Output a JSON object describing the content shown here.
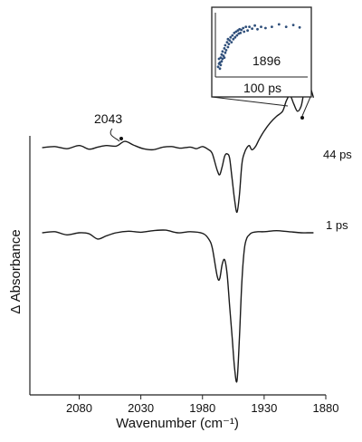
{
  "chart_data": [
    {
      "type": "line",
      "xlabel": "Wavenumber (cm⁻¹)",
      "ylabel": "Δ Absorbance",
      "xlim": [
        2120,
        1880
      ],
      "x_reversed": true,
      "x_ticks": [
        2080,
        2030,
        1980,
        1930,
        1880
      ],
      "grid": false,
      "series": [
        {
          "name": "44 ps",
          "x": [
            2110,
            2100,
            2090,
            2080,
            2072,
            2065,
            2058,
            2050,
            2043,
            2036,
            2028,
            2020,
            2012,
            2005,
            1998,
            1990,
            1985,
            1980,
            1975,
            1972,
            1968,
            1966,
            1964,
            1962,
            1960,
            1958,
            1956,
            1954,
            1952,
            1950,
            1948,
            1946,
            1944,
            1942,
            1940,
            1937,
            1934,
            1930,
            1925,
            1920,
            1915,
            1912,
            1909,
            1906,
            1903,
            1900,
            1898,
            1896,
            1894,
            1892,
            1890
          ],
          "y": [
            0.0,
            0.01,
            -0.01,
            0.02,
            -0.015,
            0.005,
            0.02,
            0.015,
            0.06,
            0.025,
            -0.01,
            -0.02,
            0.005,
            0.01,
            -0.005,
            0.005,
            -0.01,
            0.01,
            -0.02,
            -0.06,
            -0.22,
            -0.26,
            -0.18,
            -0.08,
            -0.06,
            -0.1,
            -0.3,
            -0.5,
            -0.62,
            -0.45,
            -0.15,
            -0.05,
            0.0,
            0.02,
            -0.02,
            0.01,
            0.08,
            0.16,
            0.24,
            0.3,
            0.35,
            0.45,
            0.5,
            0.42,
            0.35,
            0.4,
            0.52,
            0.64,
            0.62,
            0.56,
            0.48
          ]
        },
        {
          "name": "1 ps",
          "x": [
            2110,
            2100,
            2090,
            2080,
            2072,
            2065,
            2058,
            2050,
            2040,
            2030,
            2020,
            2010,
            2000,
            1990,
            1980,
            1975,
            1972,
            1968,
            1966,
            1964,
            1962,
            1960,
            1958,
            1956,
            1954,
            1952,
            1950,
            1948,
            1946,
            1944,
            1942,
            1940,
            1935,
            1930,
            1920,
            1910,
            1900,
            1895,
            1890
          ],
          "y": [
            0.0,
            0.01,
            -0.02,
            0.0,
            -0.01,
            -0.06,
            -0.03,
            0.0,
            0.015,
            0.005,
            0.02,
            0.025,
            0.0,
            0.01,
            -0.005,
            -0.06,
            -0.15,
            -0.42,
            -0.44,
            -0.3,
            -0.26,
            -0.4,
            -0.7,
            -1.0,
            -1.3,
            -1.42,
            -1.0,
            -0.45,
            -0.15,
            -0.05,
            -0.02,
            0.0,
            0.01,
            0.01,
            0.02,
            0.01,
            0.0,
            0.0,
            0.0
          ]
        }
      ],
      "annotations": [
        {
          "text": "2043",
          "x": 2043
        },
        {
          "text": "44 ps"
        },
        {
          "text": "1 ps"
        }
      ]
    },
    {
      "type": "scatter",
      "label": "1896",
      "xlabel": "100 ps",
      "points": [
        [
          0.02,
          0.15
        ],
        [
          0.03,
          0.2
        ],
        [
          0.03,
          0.28
        ],
        [
          0.04,
          0.22
        ],
        [
          0.05,
          0.3
        ],
        [
          0.05,
          0.18
        ],
        [
          0.06,
          0.35
        ],
        [
          0.07,
          0.28
        ],
        [
          0.07,
          0.4
        ],
        [
          0.08,
          0.33
        ],
        [
          0.09,
          0.45
        ],
        [
          0.1,
          0.38
        ],
        [
          0.1,
          0.5
        ],
        [
          0.11,
          0.42
        ],
        [
          0.12,
          0.55
        ],
        [
          0.13,
          0.47
        ],
        [
          0.13,
          0.6
        ],
        [
          0.14,
          0.52
        ],
        [
          0.15,
          0.58
        ],
        [
          0.16,
          0.63
        ],
        [
          0.17,
          0.55
        ],
        [
          0.18,
          0.66
        ],
        [
          0.19,
          0.6
        ],
        [
          0.2,
          0.7
        ],
        [
          0.21,
          0.63
        ],
        [
          0.22,
          0.72
        ],
        [
          0.23,
          0.66
        ],
        [
          0.24,
          0.74
        ],
        [
          0.25,
          0.69
        ],
        [
          0.26,
          0.76
        ],
        [
          0.27,
          0.7
        ],
        [
          0.28,
          0.75
        ],
        [
          0.3,
          0.78
        ],
        [
          0.31,
          0.72
        ],
        [
          0.33,
          0.8
        ],
        [
          0.35,
          0.74
        ],
        [
          0.37,
          0.8
        ],
        [
          0.4,
          0.77
        ],
        [
          0.43,
          0.82
        ],
        [
          0.46,
          0.76
        ],
        [
          0.5,
          0.8
        ],
        [
          0.55,
          0.78
        ],
        [
          0.62,
          0.8
        ],
        [
          0.7,
          0.84
        ],
        [
          0.78,
          0.8
        ],
        [
          0.86,
          0.83
        ],
        [
          0.93,
          0.79
        ],
        [
          0.04,
          0.12
        ],
        [
          0.06,
          0.24
        ],
        [
          0.09,
          0.3
        ]
      ]
    }
  ]
}
